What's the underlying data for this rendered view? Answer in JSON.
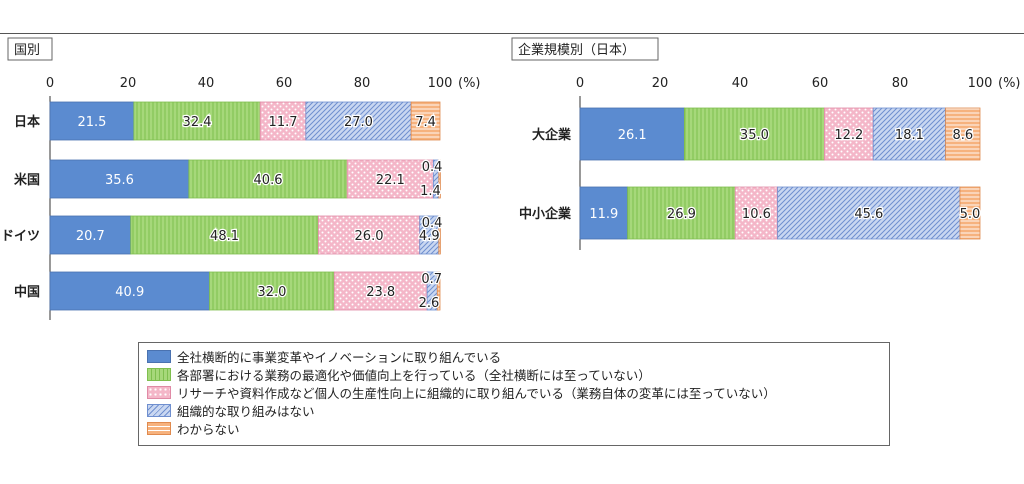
{
  "chart_data": [
    {
      "type": "bar",
      "stacked": true,
      "orientation": "horizontal",
      "title": "国別",
      "categories": [
        "日本",
        "米国",
        "ドイツ",
        "中国"
      ],
      "axis": {
        "ticks": [
          "0",
          "20",
          "40",
          "60",
          "80",
          "100"
        ],
        "unit": "(%)",
        "xlim": [
          0,
          100
        ]
      },
      "series": [
        {
          "name": "全社横断的に事業変革やイノベーションに取り組んでいる",
          "values": [
            21.5,
            35.6,
            20.7,
            40.9
          ]
        },
        {
          "name": "各部署における業務の最適化や価値向上を行っている（全社横断には至っていない）",
          "values": [
            32.4,
            40.6,
            48.1,
            32.0
          ]
        },
        {
          "name": "リサーチや資料作成など個人の生産性向上に組織的に取り組んでいる（業務自体の変革には至っていない）",
          "values": [
            11.7,
            22.1,
            26.0,
            23.8
          ]
        },
        {
          "name": "組織的な取り組みはない",
          "values": [
            27.0,
            1.4,
            4.9,
            2.6
          ]
        },
        {
          "name": "わからない",
          "values": [
            7.4,
            0.4,
            0.4,
            0.7
          ]
        }
      ],
      "value_labels": [
        [
          "21.5",
          "32.4",
          "11.7",
          "27.0",
          "7.4"
        ],
        [
          "35.6",
          "40.6",
          "22.1",
          "1.4",
          "0.4"
        ],
        [
          "20.7",
          "48.1",
          "26.0",
          "4.9",
          "0.4"
        ],
        [
          "40.9",
          "32.0",
          "23.8",
          "2.6",
          "0.7"
        ]
      ]
    },
    {
      "type": "bar",
      "stacked": true,
      "orientation": "horizontal",
      "title": "企業規模別（日本）",
      "categories": [
        "大企業",
        "中小企業"
      ],
      "axis": {
        "ticks": [
          "0",
          "20",
          "40",
          "60",
          "80",
          "100"
        ],
        "unit": "(%)",
        "xlim": [
          0,
          100
        ]
      },
      "series": [
        {
          "name": "全社横断的に事業変革やイノベーションに取り組んでいる",
          "values": [
            26.1,
            11.9
          ]
        },
        {
          "name": "各部署における業務の最適化や価値向上を行っている（全社横断には至っていない）",
          "values": [
            35.0,
            26.9
          ]
        },
        {
          "name": "リサーチや資料作成など個人の生産性向上に組織的に取り組んでいる（業務自体の変革には至っていない）",
          "values": [
            12.2,
            10.6
          ]
        },
        {
          "name": "組織的な取り組みはない",
          "values": [
            18.1,
            45.6
          ]
        },
        {
          "name": "わからない",
          "values": [
            8.6,
            5.0
          ]
        }
      ],
      "value_labels": [
        [
          "26.1",
          "35.0",
          "12.2",
          "18.1",
          "8.6"
        ],
        [
          "11.9",
          "26.9",
          "10.6",
          "45.6",
          "5.0"
        ]
      ]
    }
  ],
  "legend": [
    {
      "label": "全社横断的に事業変革やイノベーションに取り組んでいる",
      "color": "#5b8bd0",
      "pattern": "solid"
    },
    {
      "label": "各部署における業務の最適化や価値向上を行っている（全社横断には至っていない）",
      "color": "#a6d87a",
      "pattern": "vertical-lines"
    },
    {
      "label": "リサーチや資料作成など個人の生産性向上に組織的に取り組んでいる（業務自体の変革には至っていない）",
      "color": "#f4b6c8",
      "pattern": "dots"
    },
    {
      "label": "組織的な取り組みはない",
      "color": "#b3c6ea",
      "pattern": "diagonal-lines"
    },
    {
      "label": "わからない",
      "color": "#f6b27e",
      "pattern": "horizontal-lines"
    }
  ]
}
